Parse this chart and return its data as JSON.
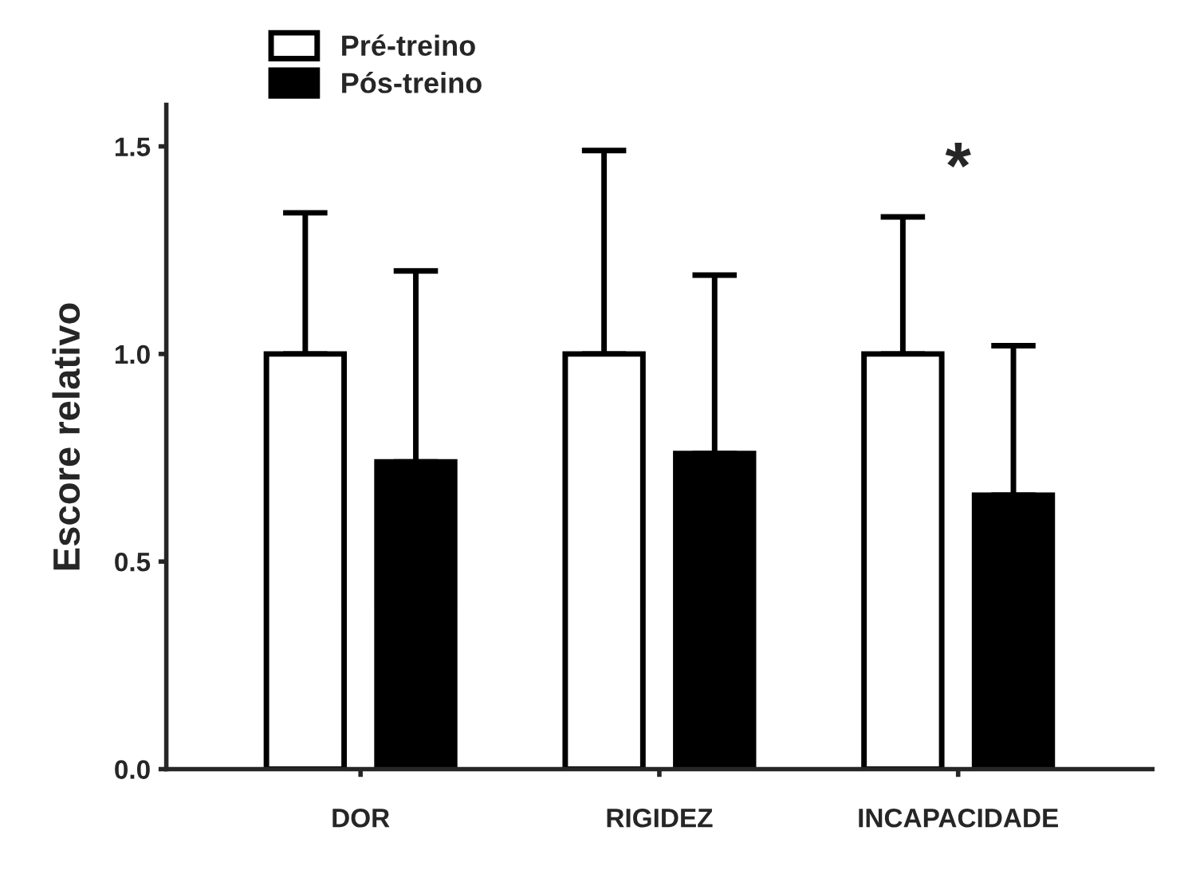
{
  "chart_data": {
    "type": "bar",
    "ylabel": "Escore relativo",
    "categories": [
      "DOR",
      "RIGIDEZ",
      "INCAPACIDADE"
    ],
    "series": [
      {
        "name": "Pré-treino",
        "color": "#ffffff",
        "values": [
          1.0,
          1.0,
          1.0
        ],
        "errors": [
          [
            1.0,
            1.34
          ],
          [
            1.0,
            1.49
          ],
          [
            1.0,
            1.33
          ]
        ]
      },
      {
        "name": "Pós-treino",
        "color": "#000000",
        "values": [
          0.74,
          0.76,
          0.66
        ],
        "errors": [
          [
            0.74,
            1.2
          ],
          [
            0.76,
            1.19
          ],
          [
            0.66,
            1.02
          ]
        ]
      }
    ],
    "annotations": [
      "*"
    ],
    "ylim": [
      0,
      1.6
    ],
    "yticks": [
      {
        "value": 0,
        "label": "0.0"
      },
      {
        "value": 0.5,
        "label": "0.5"
      },
      {
        "value": 1,
        "label": "1.0"
      },
      {
        "value": 1.5,
        "label": "1.5"
      }
    ],
    "grid": false,
    "legend": "top left"
  }
}
